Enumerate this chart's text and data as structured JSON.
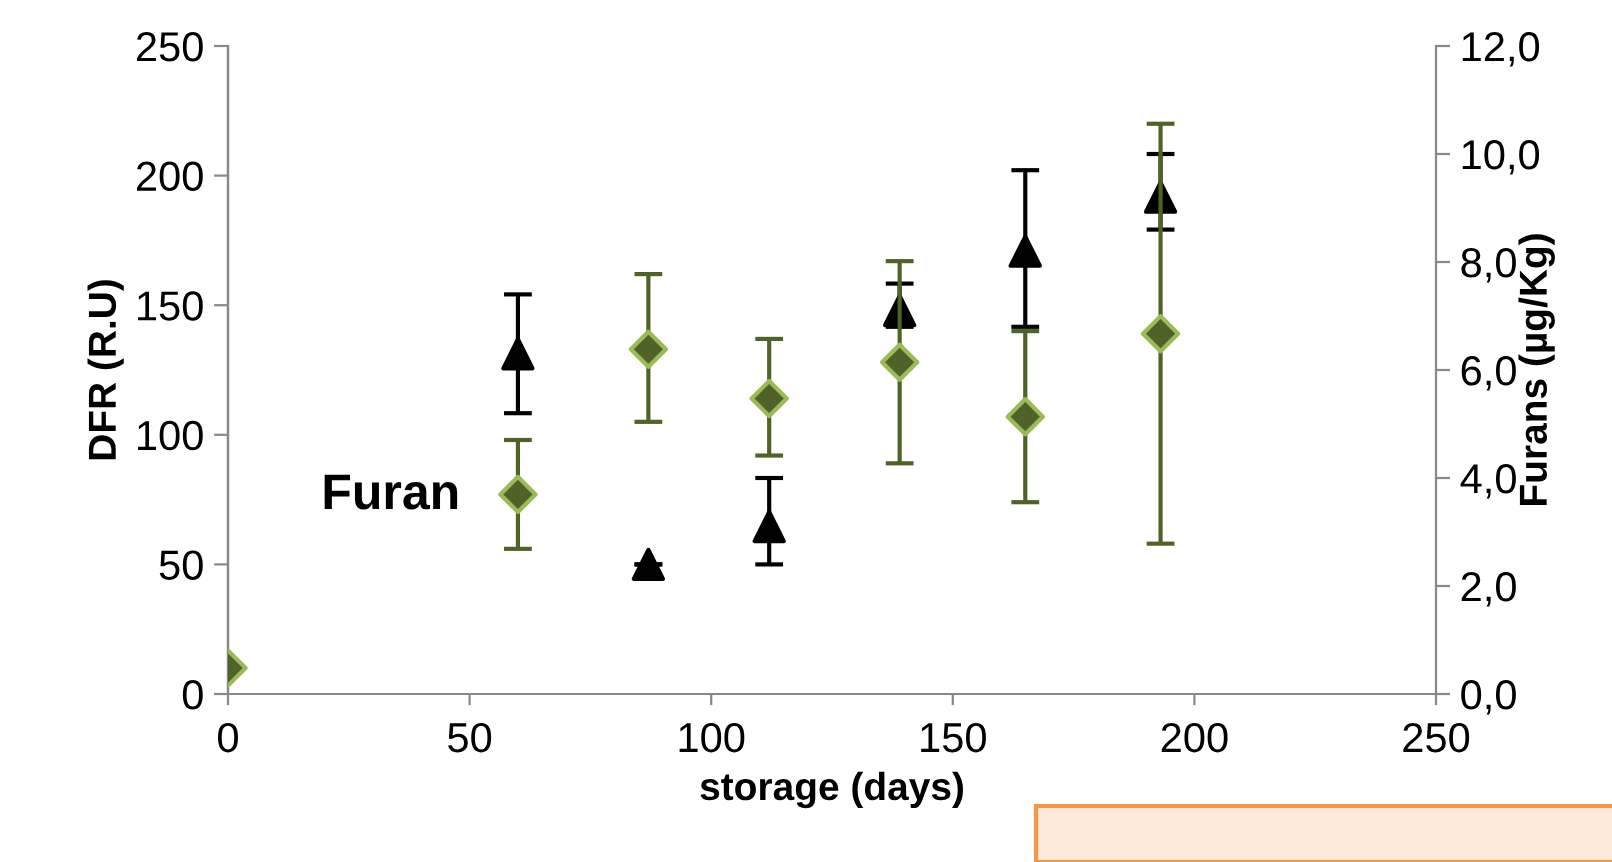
{
  "chart_data": {
    "type": "scatter",
    "xlabel": "storage (days)",
    "ylabel": "DFR (R.U)",
    "y2label": "Furans (µg/Kg)",
    "xlim": [
      0,
      250
    ],
    "xticks": [
      0,
      50,
      100,
      150,
      200,
      250
    ],
    "ylim": [
      0,
      250
    ],
    "yticks": [
      0,
      50,
      100,
      150,
      200,
      250
    ],
    "y2lim": [
      0,
      12
    ],
    "y2ticks": [
      {
        "value": 0,
        "label": "0,0"
      },
      {
        "value": 2,
        "label": "2,0"
      },
      {
        "value": 4,
        "label": "4,0"
      },
      {
        "value": 6,
        "label": "6,0"
      },
      {
        "value": 8,
        "label": "8,0"
      },
      {
        "value": 10,
        "label": "10,0"
      },
      {
        "value": 12,
        "label": "12,0"
      }
    ],
    "grid": false,
    "legend": "bottom left",
    "series": [
      {
        "name": "Furan",
        "color": "#000000",
        "axis": "y2",
        "marker": "triangle",
        "x": [
          60,
          87,
          112,
          139,
          165,
          193
        ],
        "values": [
          6.3,
          2.4,
          3.1,
          7.1,
          8.2,
          9.2
        ],
        "errors": [
          [
            5.2,
            7.4
          ],
          null,
          [
            2.4,
            4.0
          ],
          [
            6.8,
            7.6
          ],
          [
            6.8,
            9.7
          ],
          [
            8.6,
            10.0
          ]
        ]
      },
      {
        "color": "#4f6228",
        "axis": "y",
        "marker": "diamond",
        "x": [
          0,
          60,
          87,
          112,
          139,
          165,
          193
        ],
        "values": [
          10,
          77,
          133,
          114,
          128,
          107,
          139
        ],
        "errors": [
          null,
          [
            56,
            98
          ],
          [
            105,
            162
          ],
          [
            92,
            137
          ],
          [
            89,
            167
          ],
          [
            74,
            140
          ],
          [
            58,
            220
          ]
        ]
      }
    ]
  }
}
